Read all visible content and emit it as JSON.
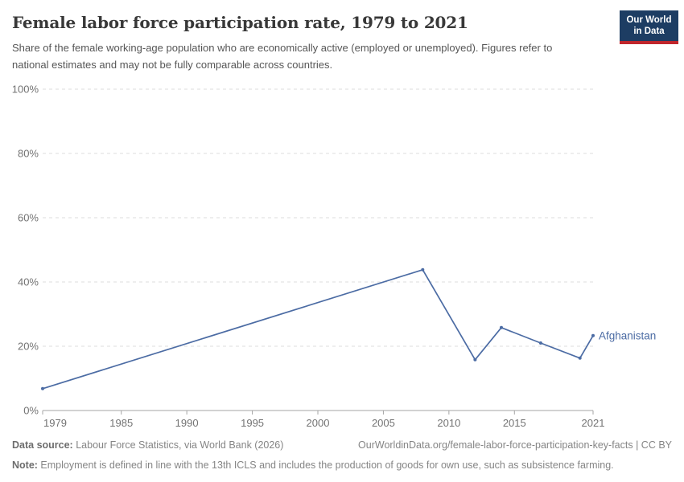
{
  "header": {
    "title": "Female labor force participation rate, 1979 to 2021",
    "subtitle": "Share of the female working-age population who are economically active (employed or unemployed). Figures refer to national estimates and may not be fully comparable across countries.",
    "logo": {
      "line1": "Our World",
      "line2": "in Data"
    }
  },
  "chart_data": {
    "type": "line",
    "title": "Female labor force participation rate, 1979 to 2021",
    "xlabel": "",
    "ylabel": "",
    "unit": "%",
    "xlim": [
      1979,
      2021
    ],
    "ylim": [
      0,
      100
    ],
    "grid": "horizontal-dashed",
    "legend_position": "end-of-line",
    "xticks": {
      "values": [
        1979,
        1985,
        1990,
        1995,
        2000,
        2005,
        2010,
        2015,
        2021
      ],
      "labels": [
        "1979",
        "1985",
        "1990",
        "1995",
        "2000",
        "2005",
        "2010",
        "2015",
        "2021"
      ]
    },
    "yticks": {
      "values": [
        0,
        20,
        40,
        60,
        80,
        100
      ],
      "labels": [
        "0%",
        "20%",
        "40%",
        "60%",
        "80%",
        "100%"
      ]
    },
    "series": [
      {
        "name": "Afghanistan",
        "color": "#4C6CA4",
        "x": [
          1979,
          2008,
          2012,
          2014,
          2017,
          2020,
          2021
        ],
        "y": [
          6.8,
          43.8,
          15.8,
          25.8,
          21.0,
          16.3,
          23.3
        ]
      }
    ]
  },
  "footer": {
    "datasource_label": "Data source:",
    "datasource_text": " Labour Force Statistics, via World Bank (2026)",
    "link_text": "OurWorldinData.org/female-labor-force-participation-key-facts | CC BY",
    "note_label": "Note:",
    "note_text": " Employment is defined in line with the 13th ICLS and includes the production of goods for own use, such as subsistence farming."
  },
  "colors": {
    "accent_line": "#4C6CA4",
    "grid": "#dddddd",
    "axis": "#a5a5a5",
    "tick_text": "#737373",
    "logo_bg": "#1d3d63",
    "logo_stripe": "#c0262c",
    "title_text": "#383838"
  }
}
